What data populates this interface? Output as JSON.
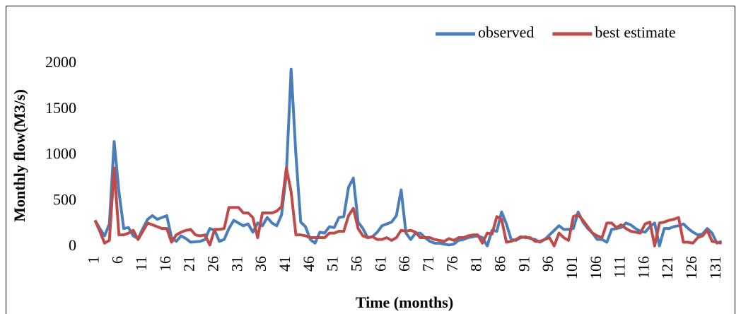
{
  "chart_data": {
    "type": "line",
    "x_label": "Time (months)",
    "y_label": "Monthly flow(M3/s)",
    "x": [
      1,
      2,
      3,
      4,
      5,
      6,
      7,
      8,
      9,
      10,
      11,
      12,
      13,
      14,
      15,
      16,
      17,
      18,
      19,
      20,
      21,
      22,
      23,
      24,
      25,
      26,
      27,
      28,
      29,
      30,
      31,
      32,
      33,
      34,
      35,
      36,
      37,
      38,
      39,
      40,
      41,
      42,
      43,
      44,
      45,
      46,
      47,
      48,
      49,
      50,
      51,
      52,
      53,
      54,
      55,
      56,
      57,
      58,
      59,
      60,
      61,
      62,
      63,
      64,
      65,
      66,
      67,
      68,
      69,
      70,
      71,
      72,
      73,
      74,
      75,
      76,
      77,
      78,
      79,
      80,
      81,
      82,
      83,
      84,
      85,
      86,
      87,
      88,
      89,
      90,
      91,
      92,
      93,
      94,
      95,
      96,
      97,
      98,
      99,
      100,
      101,
      102,
      103,
      104,
      105,
      106,
      107,
      108,
      109,
      110,
      111,
      112,
      113,
      114,
      115,
      116,
      117,
      118,
      119,
      120,
      121,
      122,
      123,
      124,
      125,
      126,
      127,
      128,
      129,
      130,
      131,
      132
    ],
    "series": [
      {
        "name": "observed",
        "color": "#4a7ebb",
        "values": [
          290,
          200,
          120,
          250,
          1150,
          600,
          200,
          210,
          120,
          90,
          200,
          300,
          340,
          300,
          320,
          340,
          100,
          60,
          120,
          90,
          50,
          55,
          60,
          80,
          200,
          180,
          60,
          80,
          200,
          290,
          260,
          230,
          250,
          160,
          260,
          230,
          320,
          260,
          230,
          350,
          800,
          1940,
          1000,
          270,
          220,
          80,
          40,
          160,
          150,
          220,
          210,
          320,
          330,
          650,
          750,
          270,
          200,
          100,
          110,
          160,
          230,
          250,
          270,
          340,
          620,
          150,
          80,
          150,
          150,
          100,
          60,
          40,
          40,
          30,
          20,
          30,
          70,
          80,
          100,
          110,
          120,
          100,
          10,
          180,
          170,
          380,
          250,
          80,
          70,
          100,
          110,
          90,
          80,
          50,
          80,
          130,
          180,
          230,
          190,
          190,
          200,
          380,
          270,
          200,
          150,
          80,
          80,
          50,
          190,
          200,
          210,
          260,
          240,
          200,
          170,
          160,
          220,
          260,
          10,
          200,
          200,
          220,
          230,
          250,
          200,
          160,
          130,
          140,
          200,
          150,
          40,
          60
        ]
      },
      {
        "name": "best estimate",
        "color": "#be4b48",
        "values": [
          290,
          170,
          40,
          70,
          860,
          130,
          130,
          150,
          180,
          80,
          170,
          260,
          240,
          220,
          200,
          200,
          50,
          130,
          160,
          180,
          190,
          130,
          120,
          130,
          20,
          190,
          190,
          200,
          430,
          430,
          430,
          370,
          370,
          320,
          100,
          370,
          370,
          370,
          390,
          440,
          860,
          600,
          130,
          130,
          120,
          100,
          100,
          100,
          100,
          150,
          150,
          170,
          170,
          340,
          420,
          200,
          120,
          100,
          110,
          80,
          80,
          100,
          70,
          100,
          180,
          170,
          180,
          160,
          100,
          100,
          100,
          80,
          70,
          60,
          90,
          70,
          100,
          100,
          120,
          130,
          130,
          40,
          150,
          140,
          330,
          300,
          50,
          60,
          80,
          110,
          100,
          100,
          60,
          60,
          80,
          100,
          10,
          150,
          100,
          70,
          330,
          350,
          290,
          220,
          150,
          120,
          100,
          260,
          260,
          210,
          240,
          200,
          170,
          160,
          150,
          250,
          270,
          10,
          260,
          270,
          290,
          300,
          320,
          50,
          50,
          40,
          100,
          120,
          180,
          60,
          50,
          40
        ]
      }
    ],
    "xlim": [
      0.5,
      132.5
    ],
    "xticks": [
      1,
      6,
      11,
      16,
      21,
      26,
      31,
      36,
      41,
      46,
      51,
      56,
      61,
      66,
      71,
      76,
      81,
      86,
      91,
      96,
      101,
      106,
      111,
      116,
      121,
      126,
      131
    ],
    "ylim": [
      0,
      2000
    ],
    "yticks": [
      0,
      500,
      1000,
      1500,
      2000
    ],
    "grid": false,
    "legend": "top-right"
  }
}
